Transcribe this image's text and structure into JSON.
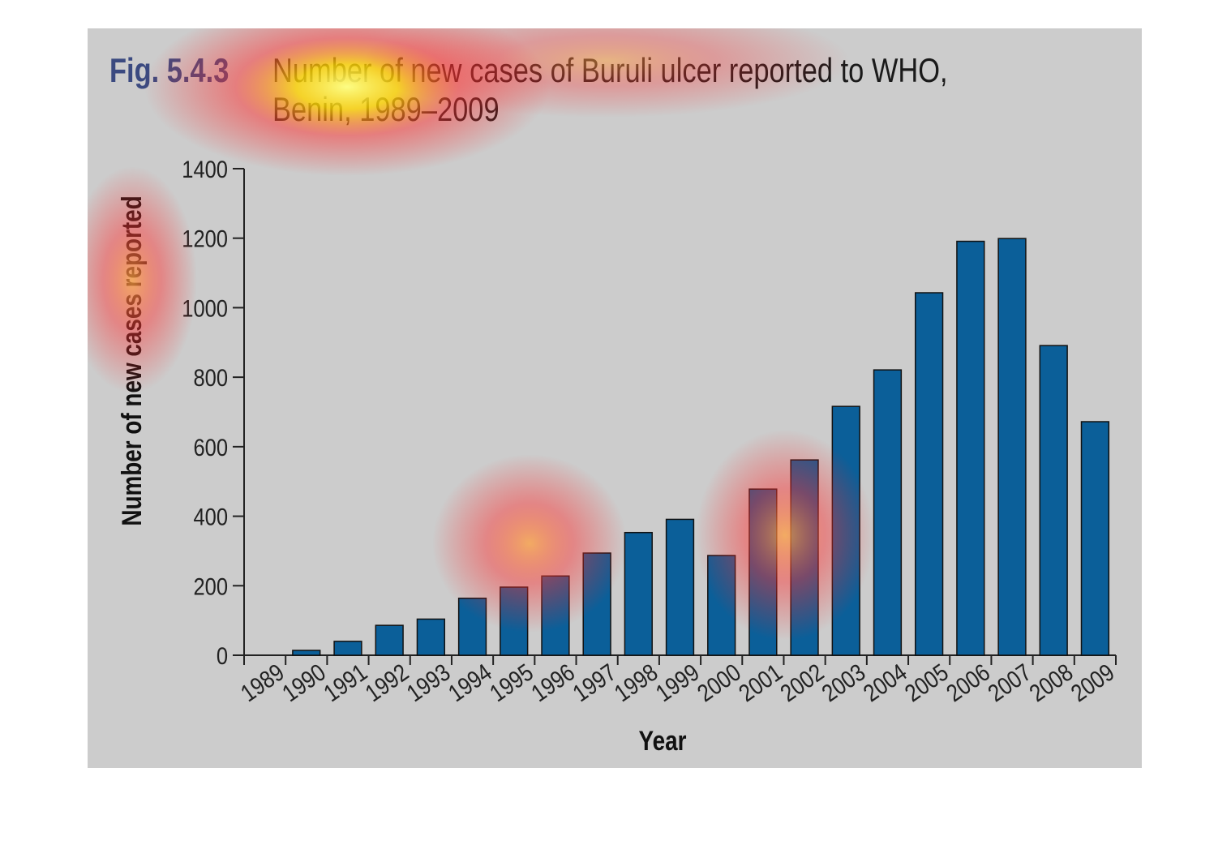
{
  "figure": {
    "label": "Fig. 5.4.3",
    "title_line1": "Number of new cases of Buruli ulcer reported to WHO,",
    "title_line2": "Benin, 1989–2009"
  },
  "colors": {
    "bar": "#0b5f99",
    "background": "#cccccc",
    "label": "#3b4a80"
  },
  "chart_data": {
    "type": "bar",
    "title": "Number of new cases of Buruli ulcer reported to WHO, Benin, 1989–2009",
    "xlabel": "Year",
    "ylabel": "Number of new cases reported",
    "ylim": [
      0,
      1400
    ],
    "yticks": [
      0,
      200,
      400,
      600,
      800,
      1000,
      1200,
      1400
    ],
    "categories": [
      "1989",
      "1990",
      "1991",
      "1992",
      "1993",
      "1994",
      "1995",
      "1996",
      "1997",
      "1998",
      "1999",
      "2000",
      "2001",
      "2002",
      "2003",
      "2004",
      "2005",
      "2006",
      "2007",
      "2008",
      "2009"
    ],
    "values": [
      0,
      14,
      40,
      86,
      104,
      164,
      196,
      228,
      294,
      353,
      391,
      287,
      478,
      562,
      716,
      821,
      1043,
      1191,
      1199,
      891,
      672
    ],
    "grid": false,
    "legend": "none"
  }
}
